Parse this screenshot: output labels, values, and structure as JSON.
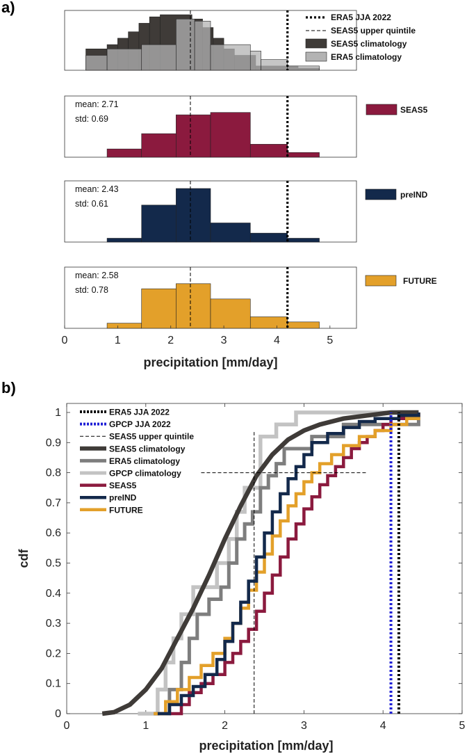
{
  "figure": {
    "panel_a_label": "a)",
    "panel_b_label": "b)"
  },
  "colors": {
    "seas5": "#8b1a3e",
    "preind": "#13294b",
    "future": "#e3a02a",
    "seas5_clim": "#3f3b38",
    "era5_clim": "#b3b3b3",
    "era5_clim_b": "#7e7e7e",
    "gpcp_clim": "#c3c3c3",
    "gpcp_obs": "#1f1fd6",
    "obs": "#000000"
  },
  "chart_data": [
    {
      "id": "a-top",
      "type": "bar",
      "subtype": "histogram",
      "xlim": [
        0,
        5.5
      ],
      "ylim": [
        0,
        0.28
      ],
      "ticks_visible": false,
      "series": [
        {
          "name": "SEAS5 climatology",
          "color_key": "seas5_clim",
          "edges": [
            0.4,
            0.8,
            1.0,
            1.2,
            1.4,
            1.6,
            1.8,
            2.4,
            2.6,
            2.8,
            3.0,
            3.2,
            3.6,
            4.2,
            4.4,
            4.8
          ],
          "values": [
            0.1,
            0.12,
            0.15,
            0.18,
            0.22,
            0.25,
            0.26,
            0.24,
            0.2,
            0.15,
            0.1,
            0.07,
            0.02,
            0.02,
            0.01
          ]
        },
        {
          "name": "ERA5 climatology",
          "color_key": "era5_clim",
          "edges": [
            0.4,
            0.8,
            1.45,
            2.1,
            2.45,
            2.75,
            3.5,
            3.7,
            4.2,
            4.8
          ],
          "values": [
            0.07,
            0.1,
            0.12,
            0.24,
            0.23,
            0.12,
            0.09,
            0.05,
            0.02
          ]
        }
      ],
      "vlines": [
        {
          "name": "ERA5 JJA 2022",
          "x": 4.2
        },
        {
          "name": "SEAS5 upper quintile",
          "x": 2.37
        }
      ],
      "legend": [
        "ERA5 JJA 2022",
        "SEAS5 upper quintile",
        "SEAS5 climatology",
        "ERA5 climatology"
      ],
      "legend_position": "top-right"
    },
    {
      "id": "a-seas5",
      "type": "bar",
      "subtype": "histogram",
      "xlim": [
        0,
        5.5
      ],
      "ylim": [
        0,
        0.52
      ],
      "series": [
        {
          "name": "SEAS5",
          "color_key": "seas5",
          "edges": [
            0.8,
            1.45,
            2.1,
            2.75,
            3.5,
            4.2,
            4.8
          ],
          "values": [
            0.07,
            0.2,
            0.36,
            0.38,
            0.11,
            0.04
          ]
        }
      ],
      "vlines": [
        {
          "name": "ERA5 JJA 2022",
          "x": 4.2
        },
        {
          "name": "SEAS5 upper quintile",
          "x": 2.37
        }
      ],
      "stats": {
        "mean": "mean: 2.71",
        "std": "std: 0.69"
      },
      "legend": [
        "SEAS5"
      ],
      "legend_position": "top-right"
    },
    {
      "id": "a-preind",
      "type": "bar",
      "subtype": "histogram",
      "xlim": [
        0,
        5.5
      ],
      "ylim": [
        0,
        0.48
      ],
      "series": [
        {
          "name": "preIND",
          "color_key": "preind",
          "edges": [
            0.8,
            1.45,
            2.1,
            2.75,
            3.5,
            4.2,
            4.8
          ],
          "values": [
            0.03,
            0.29,
            0.42,
            0.15,
            0.07,
            0.03
          ]
        }
      ],
      "vlines": [
        {
          "name": "ERA5 JJA 2022",
          "x": 4.2
        },
        {
          "name": "SEAS5 upper quintile",
          "x": 2.37
        }
      ],
      "stats": {
        "mean": "mean: 2.43",
        "std": "std: 0.61"
      },
      "legend": [
        "preIND"
      ],
      "legend_position": "top-right"
    },
    {
      "id": "a-future",
      "type": "bar",
      "subtype": "histogram",
      "xlim": [
        0,
        5.5
      ],
      "ylim": [
        0,
        0.48
      ],
      "series": [
        {
          "name": "FUTURE",
          "color_key": "future",
          "edges": [
            0.8,
            1.45,
            2.1,
            2.75,
            3.5,
            4.2,
            4.8
          ],
          "values": [
            0.04,
            0.31,
            0.35,
            0.23,
            0.09,
            0.05
          ]
        }
      ],
      "vlines": [
        {
          "name": "ERA5 JJA 2022",
          "x": 4.2
        },
        {
          "name": "SEAS5 upper quintile",
          "x": 2.37
        }
      ],
      "stats": {
        "mean": "mean: 2.58",
        "std": "std: 0.78"
      },
      "legend": [
        "FUTURE"
      ],
      "legend_position": "top-right",
      "x_ticks": [
        0,
        1,
        2,
        3,
        4,
        5
      ],
      "x_tick_labels": [
        "0",
        "1",
        "2",
        "3",
        "4",
        "5"
      ],
      "xlabel": "precipitation [mm/day]"
    },
    {
      "id": "b-cdf",
      "type": "line",
      "subtype": "cdf",
      "xlim": [
        0,
        5
      ],
      "ylim": [
        0,
        1.03
      ],
      "x_ticks": [
        0,
        1,
        2,
        3,
        4,
        5
      ],
      "x_tick_labels": [
        "0",
        "1",
        "2",
        "3",
        "4",
        "5"
      ],
      "y_ticks": [
        0,
        0.1,
        0.2,
        0.3,
        0.4,
        0.5,
        0.6,
        0.7,
        0.8,
        0.9,
        1
      ],
      "y_tick_labels": [
        "0",
        "0.1",
        "0.2",
        "0.3",
        "0.4",
        "0.5",
        "0.6",
        "0.7",
        "0.8",
        "0.9",
        "1"
      ],
      "xlabel": "precipitation [mm/day]",
      "ylabel": "cdf",
      "lines": [
        {
          "name": "ERA5 JJA 2022",
          "style": "obs",
          "color_key": "obs",
          "x": 4.2
        },
        {
          "name": "GPCP JJA 2022",
          "style": "obs",
          "color_key": "gpcp_obs",
          "x": 4.1
        },
        {
          "name": "SEAS5 upper quintile",
          "style": "thin-dash",
          "color_key": "obs",
          "x": 2.37,
          "yref": 0.8,
          "hline_range": [
            1.7,
            3.8
          ]
        }
      ],
      "series": [
        {
          "name": "SEAS5 climatology",
          "kind": "smooth",
          "color_key": "seas5_clim",
          "x": [
            0.45,
            0.6,
            0.8,
            1.0,
            1.2,
            1.4,
            1.6,
            1.8,
            2.0,
            2.2,
            2.4,
            2.6,
            2.8,
            3.0,
            3.2,
            3.5,
            3.8,
            4.1,
            4.45
          ],
          "y": [
            0.0,
            0.005,
            0.03,
            0.08,
            0.15,
            0.25,
            0.35,
            0.46,
            0.58,
            0.69,
            0.79,
            0.86,
            0.91,
            0.94,
            0.96,
            0.98,
            0.99,
            1.0,
            1.0
          ]
        },
        {
          "name": "ERA5 climatology",
          "kind": "step",
          "color_key": "era5_clim_b",
          "x": [
            1.1,
            1.3,
            1.45,
            1.55,
            1.65,
            1.8,
            1.95,
            2.05,
            2.15,
            2.25,
            2.35,
            2.45,
            2.55,
            2.65,
            2.75,
            2.85,
            3.1,
            3.3,
            3.5,
            3.7,
            4.45
          ],
          "y": [
            0.0,
            0.08,
            0.17,
            0.25,
            0.33,
            0.38,
            0.42,
            0.5,
            0.58,
            0.63,
            0.67,
            0.75,
            0.79,
            0.83,
            0.88,
            0.88,
            0.92,
            0.92,
            0.96,
            0.96,
            1.0
          ]
        },
        {
          "name": "GPCP climatology",
          "kind": "step",
          "color_key": "gpcp_clim",
          "x": [
            0.9,
            1.15,
            1.25,
            1.35,
            1.45,
            1.6,
            1.8,
            1.9,
            2.05,
            2.15,
            2.25,
            2.45,
            2.55,
            2.65,
            2.75,
            2.9,
            3.0,
            4.45
          ],
          "y": [
            0.0,
            0.08,
            0.17,
            0.25,
            0.33,
            0.42,
            0.42,
            0.5,
            0.58,
            0.67,
            0.75,
            0.92,
            0.92,
            0.96,
            0.96,
            1.0,
            1.0,
            1.0
          ]
        },
        {
          "name": "SEAS5",
          "kind": "step",
          "color_key": "seas5",
          "x": [
            1.3,
            1.45,
            1.55,
            1.7,
            1.85,
            2.0,
            2.1,
            2.2,
            2.3,
            2.4,
            2.5,
            2.6,
            2.7,
            2.8,
            2.9,
            3.0,
            3.1,
            3.2,
            3.3,
            3.4,
            3.5,
            3.6,
            3.7,
            3.8,
            3.9,
            4.0,
            4.1,
            4.3,
            4.45
          ],
          "y": [
            0.0,
            0.03,
            0.07,
            0.1,
            0.13,
            0.17,
            0.2,
            0.24,
            0.28,
            0.34,
            0.4,
            0.46,
            0.52,
            0.58,
            0.63,
            0.68,
            0.72,
            0.76,
            0.79,
            0.82,
            0.85,
            0.88,
            0.9,
            0.92,
            0.94,
            0.96,
            0.98,
            0.99,
            1.0
          ]
        },
        {
          "name": "preIND",
          "kind": "step",
          "color_key": "preind",
          "x": [
            1.15,
            1.3,
            1.45,
            1.6,
            1.75,
            1.9,
            2.0,
            2.1,
            2.2,
            2.3,
            2.4,
            2.5,
            2.6,
            2.7,
            2.8,
            2.9,
            3.0,
            3.1,
            3.3,
            3.5,
            3.7,
            3.9,
            4.2,
            4.45
          ],
          "y": [
            0.0,
            0.03,
            0.06,
            0.09,
            0.13,
            0.18,
            0.24,
            0.3,
            0.37,
            0.44,
            0.52,
            0.6,
            0.67,
            0.73,
            0.78,
            0.82,
            0.86,
            0.9,
            0.93,
            0.95,
            0.97,
            0.98,
            0.99,
            1.0
          ]
        },
        {
          "name": "FUTURE",
          "kind": "step",
          "color_key": "future",
          "x": [
            1.1,
            1.25,
            1.4,
            1.55,
            1.7,
            1.85,
            2.0,
            2.1,
            2.2,
            2.3,
            2.4,
            2.5,
            2.6,
            2.7,
            2.8,
            2.9,
            3.0,
            3.1,
            3.2,
            3.35,
            3.5,
            3.7,
            3.9,
            4.1,
            4.3,
            4.45
          ],
          "y": [
            0.0,
            0.04,
            0.08,
            0.12,
            0.16,
            0.2,
            0.25,
            0.3,
            0.35,
            0.41,
            0.47,
            0.53,
            0.59,
            0.64,
            0.69,
            0.73,
            0.77,
            0.8,
            0.83,
            0.86,
            0.89,
            0.92,
            0.94,
            0.96,
            0.98,
            1.0
          ]
        }
      ],
      "legend": [
        "ERA5 JJA 2022",
        "GPCP JJA 2022",
        "SEAS5 upper quintile",
        "SEAS5 climatology",
        "ERA5 climatology",
        "GPCP climatology",
        "SEAS5",
        "preIND",
        "FUTURE"
      ],
      "legend_position": "top-left"
    }
  ]
}
